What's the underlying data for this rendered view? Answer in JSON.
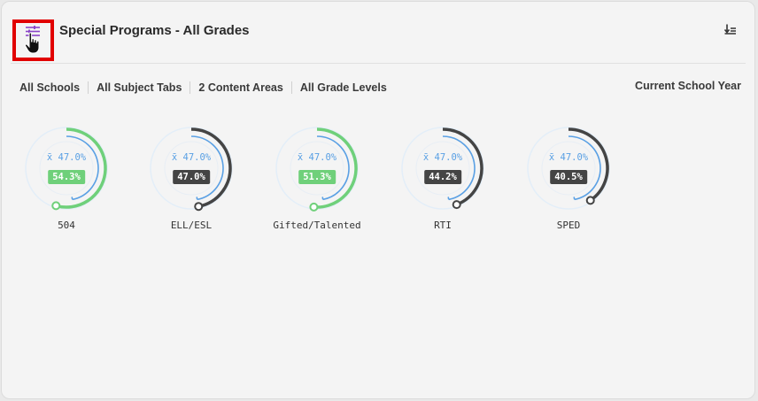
{
  "header": {
    "title": "Special Programs - All Grades",
    "filter_icon": "filter-sliders-icon",
    "sort_icon": "sort-descending-icon"
  },
  "filters": {
    "schools": "All Schools",
    "subjects": "All Subject Tabs",
    "content_areas": "2 Content Areas",
    "grade_levels": "All Grade Levels",
    "period": "Current School Year"
  },
  "colors": {
    "above_average": "#6fd07a",
    "below_average": "#444444",
    "average_ring": "#5aa0e4",
    "track": "#e3eef8",
    "highlight_box": "#e10000",
    "accent_icon": "#8a44c8"
  },
  "gauges": [
    {
      "label": "504",
      "avg_text": "x̄ 47.0%",
      "value_text": "54.3%",
      "value": 54.3,
      "average": 47.0,
      "status": "above"
    },
    {
      "label": "ELL/ESL",
      "avg_text": "x̄ 47.0%",
      "value_text": "47.0%",
      "value": 47.0,
      "average": 47.0,
      "status": "below"
    },
    {
      "label": "Gifted/Talented",
      "avg_text": "x̄ 47.0%",
      "value_text": "51.3%",
      "value": 51.3,
      "average": 47.0,
      "status": "above"
    },
    {
      "label": "RTI",
      "avg_text": "x̄ 47.0%",
      "value_text": "44.2%",
      "value": 44.2,
      "average": 47.0,
      "status": "below"
    },
    {
      "label": "SPED",
      "avg_text": "x̄ 47.0%",
      "value_text": "40.5%",
      "value": 40.5,
      "average": 47.0,
      "status": "below"
    }
  ]
}
